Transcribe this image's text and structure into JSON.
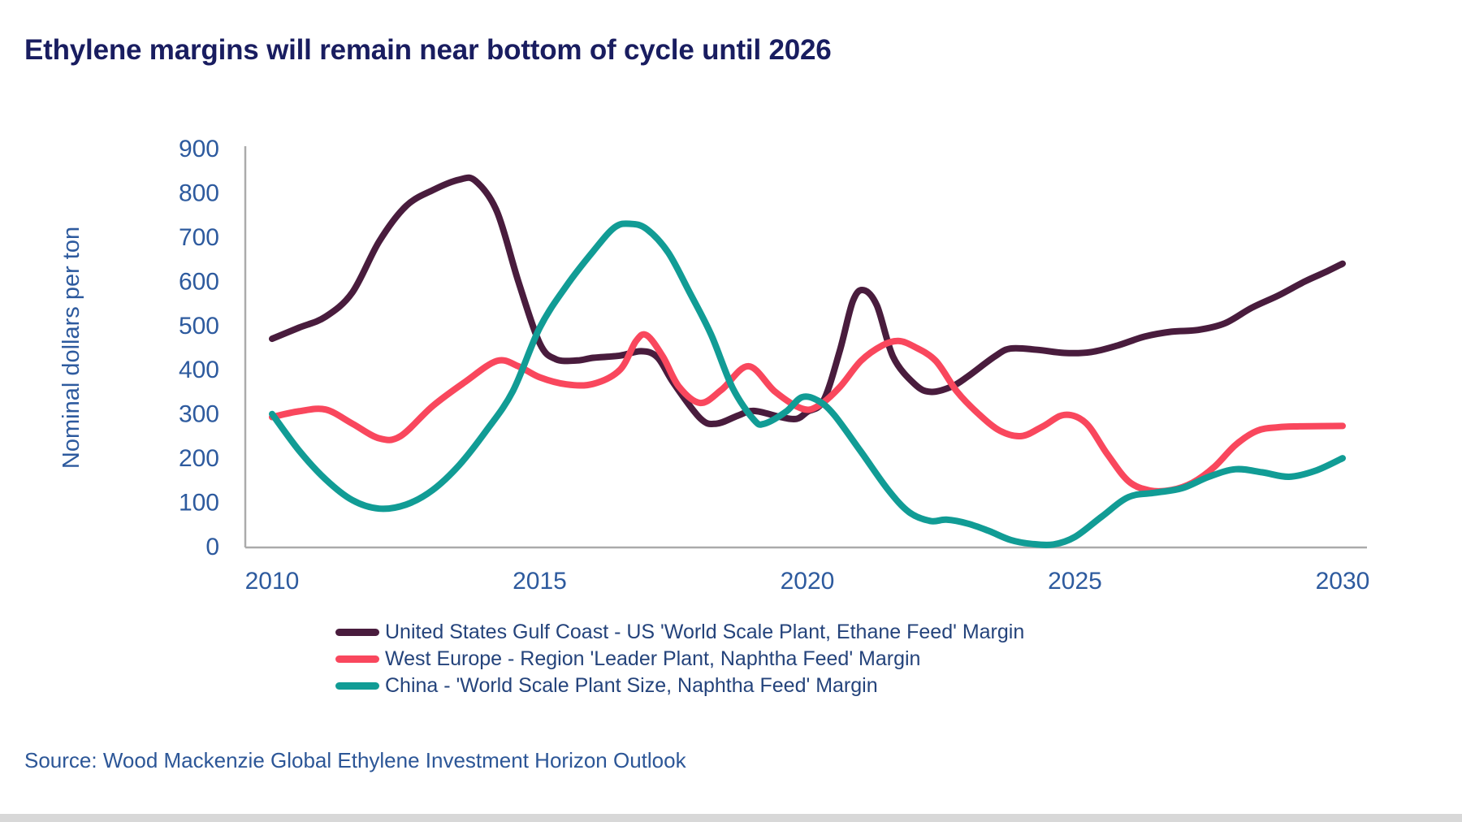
{
  "title": "Ethylene margins will remain near bottom of cycle until 2026",
  "source": "Source: Wood Mackenzie Global Ethylene Investment Horizon Outlook",
  "colors": {
    "title_text": "#191D60",
    "axis_text": "#2D5A9E",
    "legend_text": "#24437B",
    "source_text": "#2C5697",
    "axis_line": "#ABABAB",
    "background": "#FFFFFF",
    "bottom_strip": "#D8D8D8"
  },
  "chart_data": {
    "type": "line",
    "title": "Ethylene margins will remain near bottom of cycle until 2026",
    "xlabel": "",
    "ylabel": "Nominal dollars per ton",
    "ylim": [
      0,
      900
    ],
    "xlim": [
      2010,
      2030
    ],
    "y_ticks": [
      0,
      100,
      200,
      300,
      400,
      500,
      600,
      700,
      800,
      900
    ],
    "x_ticks": [
      2010,
      2015,
      2020,
      2025,
      2030
    ],
    "grid": false,
    "legend_position": "bottom",
    "series": [
      {
        "key": "us-gulf-coast",
        "name": "United States Gulf Coast - US 'World Scale Plant, Ethane Feed' Margin",
        "color": "#491C3D",
        "points": [
          [
            2010,
            470
          ],
          [
            2010.5,
            495
          ],
          [
            2011,
            520
          ],
          [
            2011.5,
            575
          ],
          [
            2012,
            690
          ],
          [
            2012.5,
            770
          ],
          [
            2013,
            806
          ],
          [
            2013.5,
            830
          ],
          [
            2013.8,
            827
          ],
          [
            2014.2,
            758
          ],
          [
            2014.6,
            600
          ],
          [
            2015,
            460
          ],
          [
            2015.3,
            424
          ],
          [
            2015.7,
            421
          ],
          [
            2016,
            427
          ],
          [
            2016.5,
            432
          ],
          [
            2016.9,
            442
          ],
          [
            2017.2,
            428
          ],
          [
            2017.5,
            370
          ],
          [
            2018,
            290
          ],
          [
            2018.3,
            278
          ],
          [
            2018.7,
            296
          ],
          [
            2019,
            307
          ],
          [
            2019.5,
            293
          ],
          [
            2019.8,
            289
          ],
          [
            2020,
            305
          ],
          [
            2020.3,
            330
          ],
          [
            2020.6,
            440
          ],
          [
            2020.85,
            555
          ],
          [
            2021.05,
            580
          ],
          [
            2021.3,
            545
          ],
          [
            2021.6,
            430
          ],
          [
            2022,
            368
          ],
          [
            2022.3,
            350
          ],
          [
            2022.7,
            362
          ],
          [
            2023,
            385
          ],
          [
            2023.5,
            430
          ],
          [
            2023.8,
            448
          ],
          [
            2024.3,
            445
          ],
          [
            2024.8,
            438
          ],
          [
            2025.3,
            440
          ],
          [
            2025.8,
            455
          ],
          [
            2026.3,
            475
          ],
          [
            2026.8,
            486
          ],
          [
            2027.3,
            490
          ],
          [
            2027.8,
            505
          ],
          [
            2028.3,
            540
          ],
          [
            2028.8,
            568
          ],
          [
            2029.3,
            600
          ],
          [
            2029.7,
            622
          ],
          [
            2030,
            640
          ]
        ]
      },
      {
        "key": "west-europe",
        "name": "West Europe - Region 'Leader Plant, Naphtha Feed' Margin",
        "color": "#F9475D",
        "points": [
          [
            2010,
            293
          ],
          [
            2010.5,
            306
          ],
          [
            2011,
            310
          ],
          [
            2011.5,
            278
          ],
          [
            2012,
            245
          ],
          [
            2012.4,
            250
          ],
          [
            2013,
            318
          ],
          [
            2013.6,
            372
          ],
          [
            2014.2,
            420
          ],
          [
            2014.6,
            408
          ],
          [
            2015,
            383
          ],
          [
            2015.5,
            367
          ],
          [
            2016,
            368
          ],
          [
            2016.5,
            400
          ],
          [
            2016.8,
            465
          ],
          [
            2017,
            478
          ],
          [
            2017.3,
            430
          ],
          [
            2017.6,
            362
          ],
          [
            2018,
            325
          ],
          [
            2018.4,
            355
          ],
          [
            2018.9,
            408
          ],
          [
            2019.4,
            350
          ],
          [
            2019.9,
            312
          ],
          [
            2020.2,
            318
          ],
          [
            2020.6,
            360
          ],
          [
            2021,
            420
          ],
          [
            2021.4,
            455
          ],
          [
            2021.7,
            465
          ],
          [
            2022,
            452
          ],
          [
            2022.4,
            420
          ],
          [
            2022.8,
            350
          ],
          [
            2023.2,
            300
          ],
          [
            2023.6,
            262
          ],
          [
            2024,
            250
          ],
          [
            2024.4,
            272
          ],
          [
            2024.8,
            298
          ],
          [
            2025.2,
            280
          ],
          [
            2025.6,
            210
          ],
          [
            2026,
            148
          ],
          [
            2026.4,
            127
          ],
          [
            2026.8,
            128
          ],
          [
            2027.2,
            145
          ],
          [
            2027.6,
            180
          ],
          [
            2028,
            230
          ],
          [
            2028.4,
            262
          ],
          [
            2028.8,
            270
          ],
          [
            2029.2,
            272
          ],
          [
            2030,
            273
          ]
        ]
      },
      {
        "key": "china",
        "name": "China - 'World Scale Plant Size, Naphtha Feed' Margin",
        "color": "#119C95",
        "points": [
          [
            2010,
            300
          ],
          [
            2010.5,
            218
          ],
          [
            2011,
            152
          ],
          [
            2011.5,
            105
          ],
          [
            2012,
            86
          ],
          [
            2012.5,
            95
          ],
          [
            2013,
            128
          ],
          [
            2013.5,
            185
          ],
          [
            2014,
            262
          ],
          [
            2014.5,
            352
          ],
          [
            2015,
            495
          ],
          [
            2015.5,
            590
          ],
          [
            2016,
            668
          ],
          [
            2016.4,
            722
          ],
          [
            2016.7,
            730
          ],
          [
            2017,
            718
          ],
          [
            2017.4,
            665
          ],
          [
            2017.8,
            575
          ],
          [
            2018.2,
            480
          ],
          [
            2018.6,
            360
          ],
          [
            2019,
            287
          ],
          [
            2019.2,
            278
          ],
          [
            2019.6,
            305
          ],
          [
            2019.9,
            338
          ],
          [
            2020.2,
            330
          ],
          [
            2020.5,
            298
          ],
          [
            2021,
            215
          ],
          [
            2021.5,
            130
          ],
          [
            2021.9,
            78
          ],
          [
            2022.3,
            58
          ],
          [
            2022.6,
            61
          ],
          [
            2023,
            52
          ],
          [
            2023.4,
            35
          ],
          [
            2023.8,
            15
          ],
          [
            2024.2,
            6
          ],
          [
            2024.6,
            5
          ],
          [
            2025,
            22
          ],
          [
            2025.5,
            68
          ],
          [
            2026,
            112
          ],
          [
            2026.5,
            122
          ],
          [
            2027,
            132
          ],
          [
            2027.5,
            158
          ],
          [
            2028,
            175
          ],
          [
            2028.5,
            168
          ],
          [
            2029,
            158
          ],
          [
            2029.5,
            172
          ],
          [
            2030,
            200
          ]
        ]
      }
    ]
  }
}
